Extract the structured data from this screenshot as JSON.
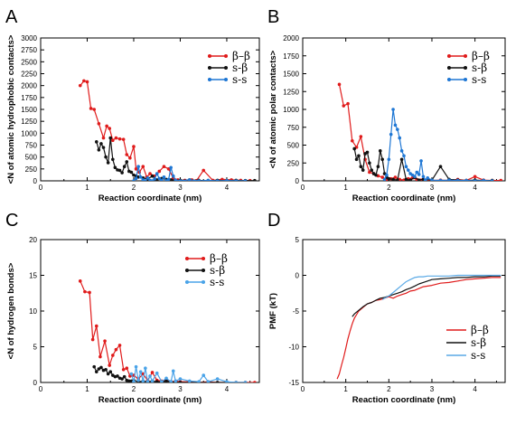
{
  "chart_data": [
    {
      "panel": "A",
      "type": "line",
      "xlabel": "Reaction coordinate (nm)",
      "ylabel": "<N of atomic hydrophobic contacts>",
      "xlim": [
        0,
        4.7
      ],
      "ylim": [
        0,
        3000
      ],
      "xticks": [
        0,
        1,
        2,
        3,
        4
      ],
      "yticks": [
        0,
        250,
        500,
        750,
        1000,
        1250,
        1500,
        1750,
        2000,
        2250,
        2500,
        2750,
        3000
      ],
      "markers": true,
      "legend_position": "top-right",
      "series": [
        {
          "name": "β–β",
          "color": "#e01b1b",
          "x": [
            0.85,
            0.93,
            1.0,
            1.08,
            1.15,
            1.25,
            1.35,
            1.42,
            1.48,
            1.55,
            1.62,
            1.7,
            1.78,
            1.85,
            1.92,
            2.0,
            2.05,
            2.12,
            2.2,
            2.28,
            2.35,
            2.45,
            2.55,
            2.65,
            2.75,
            2.85,
            2.95,
            3.1,
            3.25,
            3.35,
            3.5,
            3.7,
            3.9,
            4.1,
            4.3,
            4.5
          ],
          "y": [
            2000,
            2100,
            2080,
            1520,
            1500,
            1200,
            900,
            1150,
            1100,
            850,
            900,
            880,
            870,
            550,
            480,
            720,
            250,
            180,
            300,
            80,
            150,
            100,
            200,
            300,
            250,
            60,
            20,
            10,
            20,
            5,
            220,
            10,
            30,
            20,
            10,
            5
          ]
        },
        {
          "name": "s-β",
          "color": "#111111",
          "x": [
            1.2,
            1.25,
            1.3,
            1.35,
            1.4,
            1.45,
            1.5,
            1.55,
            1.6,
            1.65,
            1.7,
            1.75,
            1.8,
            1.85,
            1.9,
            1.95,
            2.0,
            2.05,
            2.1,
            2.2,
            2.3,
            2.4,
            2.5,
            2.6,
            2.7,
            2.8,
            3.0,
            3.2,
            3.4,
            3.6,
            3.8,
            4.0,
            4.2,
            4.4,
            4.6
          ],
          "y": [
            820,
            650,
            780,
            700,
            500,
            380,
            900,
            450,
            280,
            230,
            220,
            170,
            300,
            400,
            200,
            180,
            120,
            100,
            80,
            60,
            40,
            100,
            20,
            50,
            30,
            20,
            10,
            20,
            10,
            5,
            10,
            5,
            10,
            5,
            5
          ]
        },
        {
          "name": "s-s",
          "color": "#1f77d4",
          "x": [
            2.0,
            2.05,
            2.1,
            2.15,
            2.2,
            2.25,
            2.3,
            2.35,
            2.4,
            2.45,
            2.5,
            2.55,
            2.6,
            2.65,
            2.7,
            2.75,
            2.8,
            2.85,
            2.9,
            3.0,
            3.2,
            3.4,
            3.6,
            3.8,
            4.0,
            4.2,
            4.4
          ],
          "y": [
            0,
            50,
            300,
            80,
            20,
            0,
            60,
            10,
            0,
            40,
            150,
            50,
            10,
            80,
            0,
            30,
            280,
            100,
            10,
            0,
            20,
            0,
            10,
            0,
            5,
            0,
            0
          ]
        }
      ]
    },
    {
      "panel": "B",
      "type": "line",
      "xlabel": "Reaction coordinate (nm)",
      "ylabel": "<N of atomic polar contacts>",
      "xlim": [
        0,
        4.7
      ],
      "ylim": [
        0,
        2000
      ],
      "xticks": [
        0,
        1,
        2,
        3,
        4
      ],
      "yticks": [
        0,
        250,
        500,
        750,
        1000,
        1250,
        1500,
        1750,
        2000
      ],
      "markers": true,
      "legend_position": "top-right",
      "series": [
        {
          "name": "β–β",
          "color": "#e01b1b",
          "x": [
            0.85,
            0.95,
            1.05,
            1.15,
            1.25,
            1.35,
            1.45,
            1.55,
            1.65,
            1.75,
            1.85,
            1.95,
            2.05,
            2.15,
            2.25,
            2.35,
            2.45,
            2.55,
            2.65,
            2.75,
            2.85,
            3.0,
            3.2,
            3.4,
            3.6,
            3.8,
            4.0,
            4.2,
            4.4,
            4.6
          ],
          "y": [
            1350,
            1050,
            1080,
            560,
            470,
            620,
            300,
            120,
            100,
            70,
            50,
            20,
            30,
            50,
            20,
            10,
            30,
            40,
            20,
            10,
            10,
            5,
            10,
            5,
            20,
            5,
            60,
            10,
            5,
            5
          ]
        },
        {
          "name": "s-β",
          "color": "#111111",
          "x": [
            1.2,
            1.25,
            1.3,
            1.35,
            1.4,
            1.45,
            1.5,
            1.55,
            1.6,
            1.65,
            1.7,
            1.75,
            1.8,
            1.85,
            1.9,
            1.95,
            2.0,
            2.1,
            2.2,
            2.3,
            2.4,
            2.5,
            2.6,
            2.7,
            2.8,
            3.0,
            3.2,
            3.4,
            3.6,
            3.8,
            4.0,
            4.2,
            4.4
          ],
          "y": [
            450,
            300,
            350,
            200,
            150,
            380,
            400,
            250,
            150,
            100,
            80,
            200,
            420,
            300,
            100,
            50,
            30,
            20,
            10,
            300,
            20,
            10,
            50,
            10,
            20,
            10,
            200,
            20,
            10,
            5,
            10,
            5,
            5
          ]
        },
        {
          "name": "s-s",
          "color": "#1f77d4",
          "x": [
            1.9,
            1.95,
            2.0,
            2.05,
            2.1,
            2.15,
            2.2,
            2.25,
            2.3,
            2.35,
            2.4,
            2.45,
            2.5,
            2.55,
            2.6,
            2.65,
            2.7,
            2.75,
            2.8,
            2.85,
            2.9,
            3.0,
            3.2,
            3.4,
            3.6,
            3.8,
            4.0,
            4.2,
            4.4
          ],
          "y": [
            20,
            80,
            300,
            650,
            1000,
            780,
            720,
            600,
            420,
            350,
            200,
            150,
            100,
            80,
            60,
            120,
            90,
            280,
            60,
            10,
            40,
            10,
            5,
            10,
            5,
            5,
            0,
            5,
            0
          ]
        }
      ]
    },
    {
      "panel": "C",
      "type": "line",
      "xlabel": "Reaction coordinate (nm)",
      "ylabel": "<N of hydrogen bonds>",
      "xlim": [
        0,
        4.7
      ],
      "ylim": [
        0,
        20
      ],
      "xticks": [
        0,
        1,
        2,
        3,
        4
      ],
      "yticks": [
        0,
        5,
        10,
        15,
        20
      ],
      "markers": true,
      "legend_position": "top-right",
      "series": [
        {
          "name": "β–β",
          "color": "#e01b1b",
          "x": [
            0.85,
            0.95,
            1.05,
            1.12,
            1.2,
            1.28,
            1.38,
            1.48,
            1.55,
            1.62,
            1.7,
            1.78,
            1.85,
            1.92,
            2.0,
            2.1,
            2.2,
            2.3,
            2.4,
            2.5,
            2.6,
            2.7,
            2.8,
            2.9,
            3.0,
            3.2,
            3.4,
            3.6,
            3.8,
            4.0,
            4.2,
            4.4,
            4.6
          ],
          "y": [
            14.2,
            12.7,
            12.6,
            6.0,
            7.9,
            3.6,
            5.8,
            2.4,
            3.8,
            4.6,
            5.2,
            1.8,
            2.0,
            0.9,
            1.0,
            0.5,
            1.2,
            0.3,
            1.4,
            0.3,
            0.2,
            0.3,
            0.1,
            0.2,
            0.1,
            0.1,
            0.0,
            0.1,
            0.0,
            0.0,
            0.0,
            0.0,
            0.0
          ]
        },
        {
          "name": "s-β",
          "color": "#111111",
          "x": [
            1.15,
            1.2,
            1.25,
            1.3,
            1.35,
            1.4,
            1.45,
            1.5,
            1.55,
            1.6,
            1.65,
            1.7,
            1.75,
            1.8,
            1.85,
            1.9,
            1.95,
            2.0,
            2.1,
            2.2,
            2.3,
            2.4,
            2.5,
            2.6,
            2.7,
            2.8,
            3.0,
            3.2,
            3.4,
            3.6,
            3.8,
            4.0,
            4.2,
            4.4
          ],
          "y": [
            2.2,
            1.5,
            1.9,
            2.1,
            1.7,
            1.8,
            1.2,
            1.5,
            1.0,
            0.8,
            0.9,
            0.6,
            0.5,
            0.8,
            0.3,
            0.2,
            0.2,
            0.3,
            0.1,
            0.2,
            0.1,
            0.2,
            0.1,
            0.1,
            0.2,
            0.1,
            0.0,
            0.0,
            0.0,
            0.0,
            0.0,
            0.0,
            0.0,
            0.0
          ]
        },
        {
          "name": "s-s",
          "color": "#4aa3e8",
          "x": [
            1.95,
            2.0,
            2.05,
            2.1,
            2.15,
            2.2,
            2.25,
            2.3,
            2.35,
            2.4,
            2.5,
            2.6,
            2.7,
            2.8,
            2.85,
            2.9,
            3.0,
            3.2,
            3.4,
            3.5,
            3.6,
            3.8,
            4.0,
            4.2,
            4.4
          ],
          "y": [
            1.2,
            0.1,
            2.2,
            0.3,
            1.5,
            0.2,
            2.0,
            0.1,
            0.9,
            0.2,
            1.3,
            0.1,
            0.6,
            0.1,
            1.6,
            0.2,
            0.5,
            0.2,
            0.1,
            1.0,
            0.1,
            0.5,
            0.1,
            0.0,
            0.0
          ]
        }
      ]
    },
    {
      "panel": "D",
      "type": "line",
      "xlabel": "Reaction coordinate (nm)",
      "ylabel": "PMF (kT)",
      "xlim": [
        0,
        4.7
      ],
      "ylim": [
        -15,
        5
      ],
      "xticks": [
        0,
        1,
        2,
        3,
        4
      ],
      "yticks": [
        -15,
        -10,
        -5,
        0,
        5
      ],
      "markers": false,
      "legend_position": "bottom-right",
      "series": [
        {
          "name": "β–β",
          "color": "#e01b1b",
          "x": [
            0.8,
            0.85,
            0.9,
            0.95,
            1.0,
            1.05,
            1.1,
            1.15,
            1.2,
            1.3,
            1.4,
            1.5,
            1.6,
            1.7,
            1.8,
            1.9,
            2.0,
            2.1,
            2.2,
            2.3,
            2.4,
            2.5,
            2.6,
            2.8,
            3.0,
            3.2,
            3.4,
            3.6,
            3.8,
            4.0,
            4.2,
            4.4,
            4.6
          ],
          "y": [
            -14.5,
            -13.8,
            -12.6,
            -11.5,
            -10.2,
            -8.9,
            -7.8,
            -6.8,
            -6.0,
            -5.0,
            -4.5,
            -4.0,
            -3.8,
            -3.5,
            -3.4,
            -3.2,
            -3.0,
            -3.2,
            -2.9,
            -2.7,
            -2.5,
            -2.2,
            -2.1,
            -1.6,
            -1.4,
            -1.1,
            -1.0,
            -0.8,
            -0.6,
            -0.5,
            -0.4,
            -0.3,
            -0.3
          ]
        },
        {
          "name": "s-β",
          "color": "#111111",
          "x": [
            1.15,
            1.2,
            1.3,
            1.4,
            1.5,
            1.6,
            1.7,
            1.8,
            1.9,
            2.0,
            2.1,
            2.2,
            2.3,
            2.4,
            2.5,
            2.6,
            2.7,
            2.8,
            2.9,
            3.0,
            3.2,
            3.4,
            3.6,
            3.8,
            4.0,
            4.2,
            4.4,
            4.6
          ],
          "y": [
            -5.8,
            -5.4,
            -4.9,
            -4.4,
            -4.0,
            -3.8,
            -3.5,
            -3.2,
            -3.1,
            -2.9,
            -2.7,
            -2.5,
            -2.3,
            -2.0,
            -1.8,
            -1.5,
            -1.2,
            -1.0,
            -0.8,
            -0.6,
            -0.5,
            -0.4,
            -0.3,
            -0.3,
            -0.2,
            -0.2,
            -0.1,
            -0.1
          ]
        },
        {
          "name": "s-s",
          "color": "#5aa9e6",
          "x": [
            1.85,
            1.9,
            2.0,
            2.1,
            2.2,
            2.3,
            2.4,
            2.5,
            2.6,
            2.7,
            2.8,
            2.9,
            3.0,
            3.2,
            3.4,
            3.6,
            3.8,
            4.0,
            4.2,
            4.4,
            4.6
          ],
          "y": [
            -3.4,
            -3.2,
            -2.9,
            -2.4,
            -1.9,
            -1.4,
            -0.9,
            -0.6,
            -0.3,
            -0.2,
            -0.2,
            -0.1,
            -0.1,
            -0.1,
            -0.1,
            0.0,
            0.0,
            0.0,
            0.0,
            0.0,
            0.0
          ]
        }
      ]
    }
  ]
}
